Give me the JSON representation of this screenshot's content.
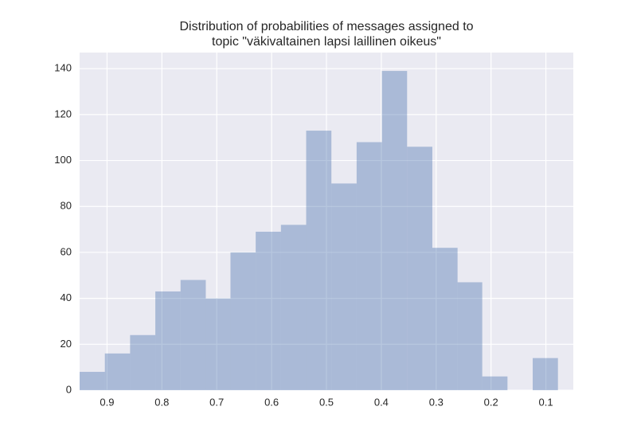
{
  "chart_data": {
    "type": "histogram",
    "title": [
      "Distribution of probabilities of messages assigned to",
      "topic \"väkivaltainen lapsi laillinen oikeus\""
    ],
    "bins": [
      0.95,
      0.904,
      0.858,
      0.812,
      0.766,
      0.72,
      0.675,
      0.629,
      0.583,
      0.537,
      0.491,
      0.445,
      0.399,
      0.353,
      0.307,
      0.261,
      0.216,
      0.17,
      0.124,
      0.078
    ],
    "counts": [
      8,
      16,
      24,
      43,
      48,
      40,
      60,
      69,
      72,
      113,
      90,
      108,
      139,
      106,
      62,
      47,
      6,
      0,
      14
    ],
    "color": "#4c72b0",
    "xlim": [
      0.95,
      0.05
    ],
    "xticks": [
      0.9,
      0.8,
      0.7,
      0.6,
      0.5,
      0.4,
      0.3,
      0.2,
      0.1
    ],
    "ylim": [
      0,
      147
    ],
    "yticks": [
      0,
      20,
      40,
      60,
      80,
      100,
      120,
      140
    ],
    "grid": true
  }
}
